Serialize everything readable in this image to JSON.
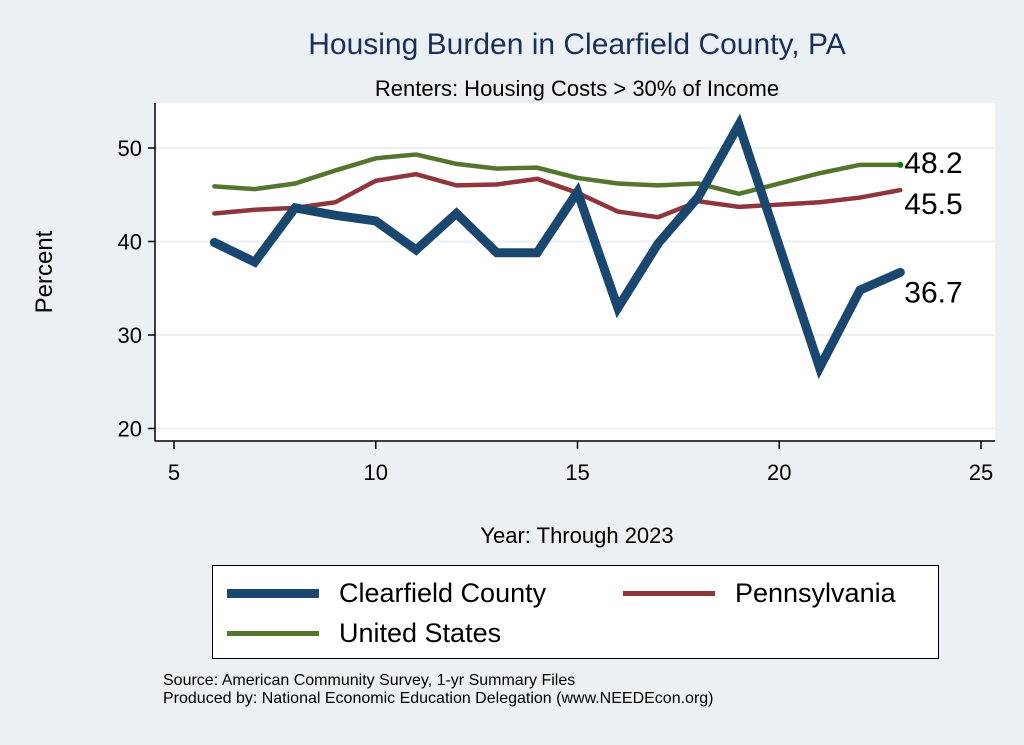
{
  "chart_data": {
    "type": "line",
    "title": "Housing Burden in Clearfield County, PA",
    "subtitle": "Renters: Housing Costs > 30% of Income",
    "xlabel": "Year: Through 2023",
    "ylabel": "Percent",
    "xlim": [
      5,
      25
    ],
    "ylim": [
      20,
      54
    ],
    "xticks": [
      "5",
      "10",
      "15",
      "20",
      "25"
    ],
    "yticks": [
      "20",
      "30",
      "40",
      "50"
    ],
    "grid": true,
    "legend_position": "bottom",
    "x": [
      6,
      7,
      8,
      9,
      10,
      11,
      12,
      13,
      14,
      15,
      16,
      17,
      18,
      19,
      21,
      22,
      23
    ],
    "series": [
      {
        "name": "Clearfield County",
        "color": "#1a476f",
        "values": [
          39.9,
          37.8,
          43.6,
          42.8,
          42.2,
          39.1,
          43.0,
          38.8,
          38.8,
          45.3,
          32.9,
          39.8,
          44.8,
          52.5,
          26.5,
          34.8,
          36.7
        ],
        "end_label": "36.7"
      },
      {
        "name": "Pennsylvania",
        "color": "#90353b",
        "values": [
          43.0,
          43.4,
          43.6,
          44.2,
          46.5,
          47.2,
          46.0,
          46.1,
          46.7,
          45.2,
          43.2,
          42.6,
          44.3,
          43.7,
          44.2,
          44.7,
          45.5
        ],
        "end_label": "45.5"
      },
      {
        "name": "United States",
        "color": "#55752f",
        "values": [
          45.9,
          45.6,
          46.2,
          47.6,
          48.9,
          49.3,
          48.3,
          47.8,
          47.9,
          46.8,
          46.2,
          46.0,
          46.2,
          45.1,
          47.3,
          48.2,
          48.2
        ],
        "end_label": "48.2"
      }
    ]
  },
  "notes": {
    "source": "Source: American Community Survey, 1-yr Summary Files",
    "produced": "Produced by: National Economic Education Delegation (www.NEEDEcon.org)"
  }
}
